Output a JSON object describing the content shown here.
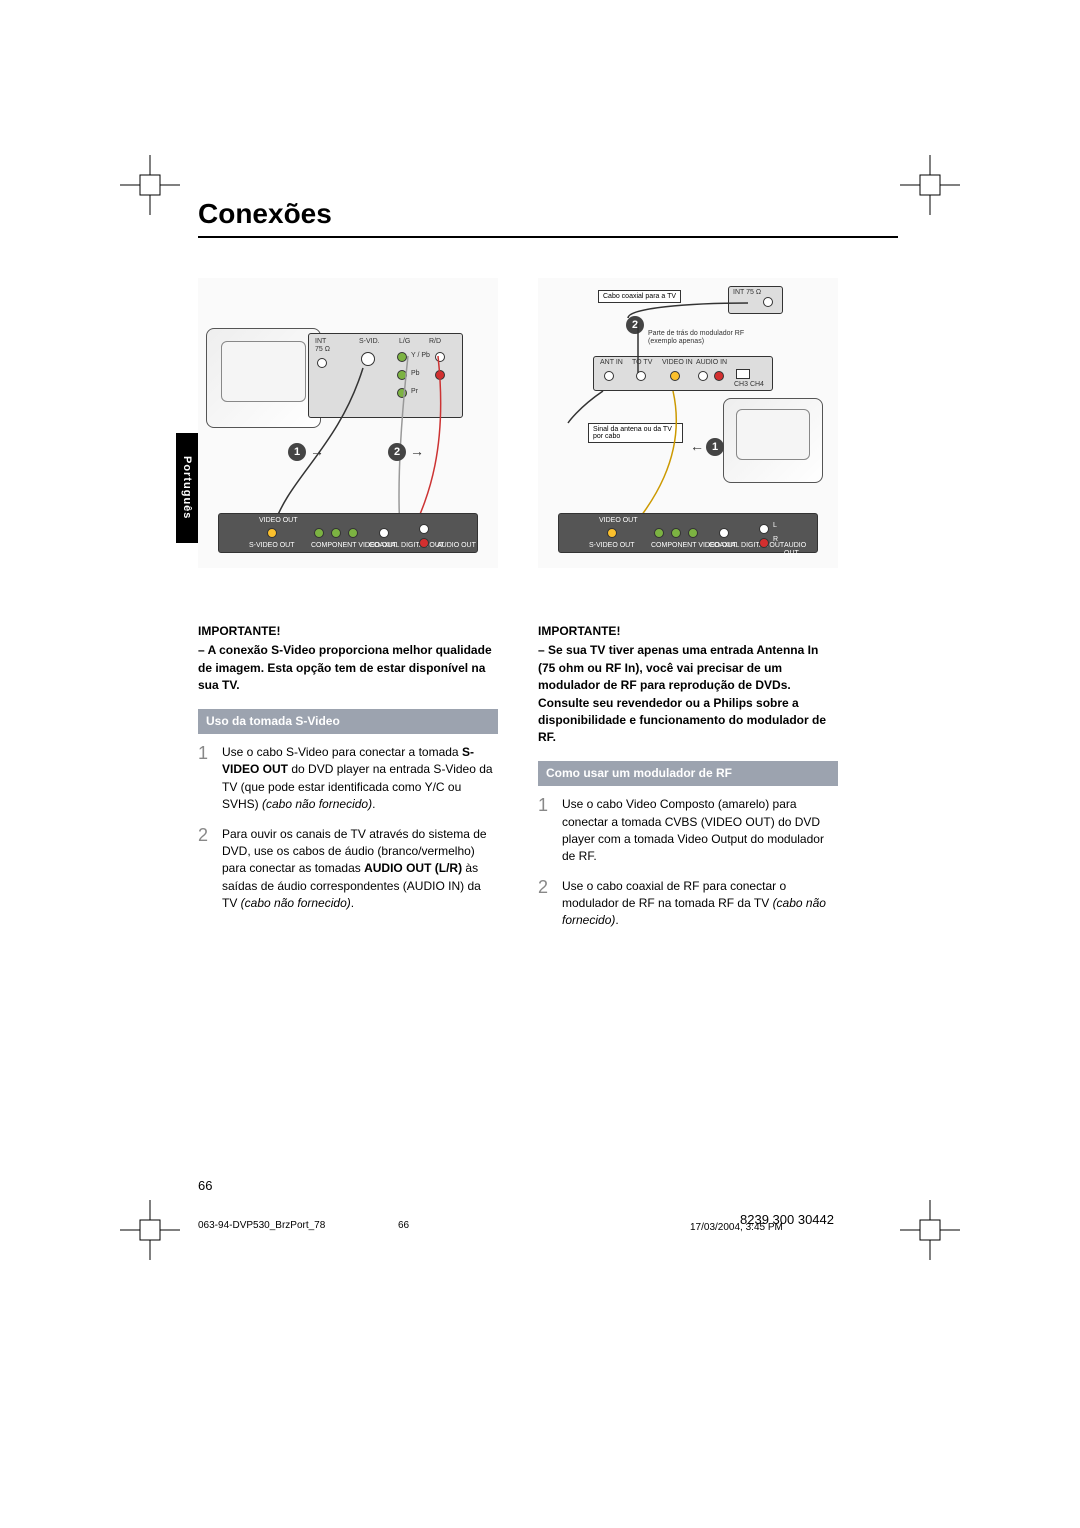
{
  "page": {
    "title": "Conexões",
    "lang_tab": "Português",
    "page_number": "66"
  },
  "left": {
    "important_head": "IMPORTANTE!",
    "important_body": "– A conexão S-Video proporciona melhor qualidade de imagem. Esta opção tem de estar disponível na sua TV.",
    "section_bar": "Uso da tomada S-Video",
    "steps": [
      {
        "num": "1",
        "parts": [
          {
            "t": "Use o cabo S-Video para conectar a tomada "
          },
          {
            "t": "S-VIDEO OUT",
            "b": true
          },
          {
            "t": " do DVD player na entrada S-Video da TV (que pode estar identificada como Y/C ou SVHS) "
          },
          {
            "t": "(cabo não fornecido)",
            "i": true
          },
          {
            "t": "."
          }
        ]
      },
      {
        "num": "2",
        "parts": [
          {
            "t": "Para ouvir os canais de TV através do sistema de DVD, use os cabos de áudio (branco/vermelho) para conectar as tomadas "
          },
          {
            "t": "AUDIO OUT (L/R)",
            "b": true
          },
          {
            "t": " às saídas de áudio correspondentes (AUDIO IN) da TV "
          },
          {
            "t": "(cabo não fornecido)",
            "i": true
          },
          {
            "t": "."
          }
        ]
      }
    ]
  },
  "right": {
    "important_head": "IMPORTANTE!",
    "important_body": "– Se sua TV tiver apenas uma entrada Antenna In (75 ohm ou RF In), você vai precisar de um modulador de RF para reprodução de DVDs. Consulte seu revendedor ou a Philips sobre a disponibilidade e funcionamento do modulador de RF.",
    "section_bar": "Como usar um modulador de RF",
    "steps": [
      {
        "num": "1",
        "parts": [
          {
            "t": "Use o cabo Video Composto (amarelo) para conectar a tomada CVBS (VIDEO OUT) do DVD player com a tomada Video Output do modulador de RF."
          }
        ]
      },
      {
        "num": "2",
        "parts": [
          {
            "t": "Use o cabo coaxial de RF para conectar o modulador de RF na tomada RF da TV "
          },
          {
            "t": "(cabo não fornecido)",
            "i": true
          },
          {
            "t": "."
          }
        ]
      }
    ]
  },
  "diagram_left": {
    "tv_back_labels": [
      "INT",
      "75 Ω",
      "S-VID.",
      "L/G",
      "R/D"
    ],
    "tv_back_rows": [
      "Y / Pb",
      "Pb",
      "Pr"
    ],
    "dvd_labels": [
      "VIDEO OUT",
      "S-VIDEO OUT",
      "Pr  Pb  Y",
      "COMPONENT VIDEO OUT",
      "COAXIAL DIGITAL OUT",
      "AUDIO OUT"
    ],
    "num1": "1",
    "num2": "2"
  },
  "diagram_right": {
    "coax_label": "Cabo coaxial para a TV",
    "mod_label": "Parte de trás do modulador RF (exemplo apenas)",
    "mod_ports": [
      "ANT IN",
      "TO TV",
      "VIDEO IN",
      "AUDIO IN",
      "CH3 CH4"
    ],
    "antenna_label": "Sinal da antena ou da TV por cabo",
    "dvd_labels": [
      "VIDEO OUT",
      "S-VIDEO OUT",
      "Pr  Pb  Y",
      "COMPONENT VIDEO OUT",
      "COAXIAL DIGITAL OUT",
      "AUDIO OUT",
      "L",
      "R"
    ],
    "tv_back_label": "INT 75 Ω",
    "num1": "1",
    "num2": "2"
  },
  "footer": {
    "file": "063-94-DVP530_BrzPort_78",
    "mid": "66",
    "code": "8239 300 30442",
    "date": "17/03/2004, 3:45 PM"
  },
  "colors": {
    "section_bar_bg": "#9ca3af",
    "step_num": "#888888"
  }
}
